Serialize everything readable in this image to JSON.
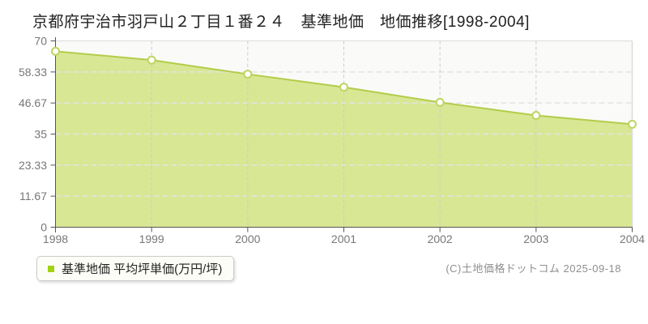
{
  "chart_data": {
    "type": "area",
    "title": "京都府宇治市羽戸山２丁目１番２４　基準地価　地価推移[1998-2004]",
    "categories": [
      "1998",
      "1999",
      "2000",
      "2001",
      "2002",
      "2003",
      "2004"
    ],
    "series": [
      {
        "name": "基準地価 平均坪単価(万円/坪)",
        "values": [
          66.1,
          62.8,
          57.5,
          52.6,
          46.9,
          42.0,
          38.7
        ]
      }
    ],
    "xlabel": "",
    "ylabel": "",
    "ylim": [
      0,
      70
    ],
    "yticks": [
      0,
      11.67,
      23.33,
      35,
      46.67,
      58.33,
      70
    ],
    "ytick_labels": [
      "0",
      "11.67",
      "23.33",
      "35",
      "46.67",
      "58.33",
      "70"
    ],
    "grid": true,
    "legend_position": "bottom-left",
    "unit": "万円/坪",
    "colors": {
      "area_fill": "#d8e794",
      "line": "#b2cc49",
      "marker_fill": "#ffffff",
      "marker_stroke": "#bdd55f",
      "legend_swatch": "#a3d211",
      "axis": "#555555",
      "tick_label": "#777777",
      "h_gridline": "#e3e3e3",
      "v_gridline": "#cccccc",
      "plot_bg": "#fafaf8",
      "plot_border": "#dcdcdc"
    }
  },
  "footer": {
    "copyright": "(C)土地価格ドットコム 2025-09-18"
  }
}
